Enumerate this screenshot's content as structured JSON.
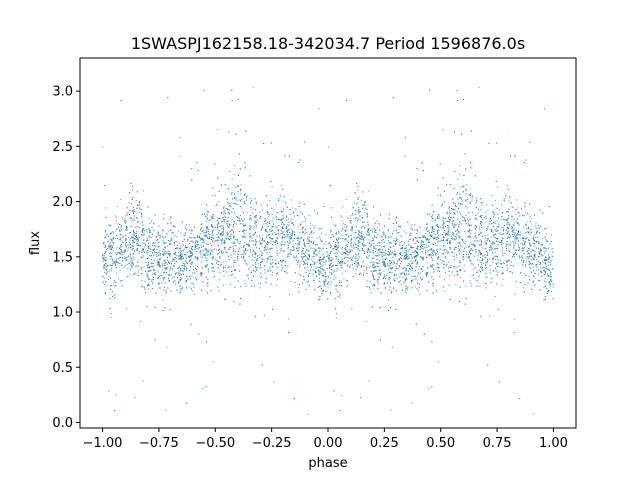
{
  "chart_data": {
    "type": "scatter",
    "title": "1SWASPJ162158.18-342034.7 Period 1596876.0s",
    "xlabel": "phase",
    "ylabel": "flux",
    "xlim": [
      -1.1,
      1.1
    ],
    "ylim": [
      -0.05,
      3.3
    ],
    "xticks": [
      -1.0,
      -0.75,
      -0.5,
      -0.25,
      0.0,
      0.25,
      0.5,
      0.75,
      1.0
    ],
    "xtick_labels": [
      "−1.00",
      "−0.75",
      "−0.50",
      "−0.25",
      "0.00",
      "0.25",
      "0.50",
      "0.75",
      "1.00"
    ],
    "yticks": [
      0.0,
      0.5,
      1.0,
      1.5,
      2.0,
      2.5,
      3.0
    ],
    "ytick_labels": [
      "0.0",
      "0.5",
      "1.0",
      "1.5",
      "2.0",
      "2.5",
      "3.0"
    ],
    "grid": false,
    "marker_color": "#1f77b4",
    "marker": "dots",
    "profile": {
      "description_of_values": "phase-folded light curve, data mirrored over phase -1..0 and 0..1",
      "phase": [
        0.0,
        0.05,
        0.1,
        0.15,
        0.2,
        0.25,
        0.3,
        0.35,
        0.4,
        0.45,
        0.5,
        0.55,
        0.6,
        0.65,
        0.7,
        0.75,
        0.8,
        0.85,
        0.9,
        0.95,
        1.0
      ],
      "median_flux": [
        1.45,
        1.55,
        1.6,
        1.7,
        1.5,
        1.45,
        1.5,
        1.45,
        1.5,
        1.6,
        1.65,
        1.7,
        1.75,
        1.7,
        1.6,
        1.65,
        1.7,
        1.65,
        1.55,
        1.5,
        1.35
      ],
      "spread": [
        0.25,
        0.3,
        0.3,
        0.35,
        0.3,
        0.3,
        0.3,
        0.25,
        0.25,
        0.3,
        0.35,
        0.4,
        0.45,
        0.4,
        0.35,
        0.35,
        0.35,
        0.3,
        0.3,
        0.3,
        0.25
      ]
    }
  }
}
